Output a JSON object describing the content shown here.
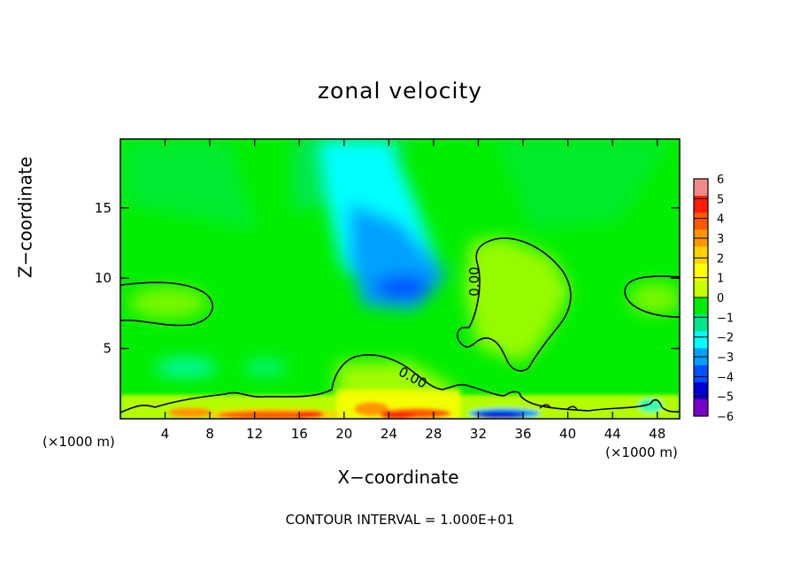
{
  "chart_data": {
    "type": "heatmap",
    "title": "zonal velocity",
    "xlabel": "X−coordinate",
    "ylabel": "Z−coordinate",
    "x_unit_note": "(×1000 m)",
    "y_unit_note": "(×1000 m)",
    "footer": "CONTOUR INTERVAL = 1.000E+01",
    "xlim": [
      0,
      50
    ],
    "ylim": [
      0,
      19.9
    ],
    "x_ticks": [
      4,
      8,
      12,
      16,
      20,
      24,
      28,
      32,
      36,
      40,
      44,
      48
    ],
    "y_ticks": [
      5,
      10,
      15
    ],
    "colorbar": {
      "range": [
        -6,
        6
      ],
      "ticks": [
        6,
        5,
        4,
        3,
        2,
        1,
        0,
        -1,
        -2,
        -3,
        -4,
        -5,
        -6
      ],
      "tick_labels": [
        "6",
        "5",
        "4",
        "3",
        "2",
        "1",
        "0",
        "−1",
        "−2",
        "−3",
        "−4",
        "−5",
        "−6"
      ],
      "colors": [
        "#f08a8a",
        "#ff1e00",
        "#ff5a00",
        "#ff9600",
        "#ffd200",
        "#ffff00",
        "#c8ff00",
        "#00ee00",
        "#00e68c",
        "#00ffff",
        "#00a0ff",
        "#0050ff",
        "#0000d2",
        "#7800c8"
      ]
    },
    "contour_labels": [
      "0.00",
      "0.00"
    ],
    "field_features": [
      {
        "feature": "negative core",
        "x": 26,
        "z": 9.5,
        "value": -3
      },
      {
        "feature": "negative plume",
        "x": 22,
        "z": 15,
        "value": -2
      },
      {
        "feature": "positive region",
        "x": 34,
        "z": 9.5,
        "value": 1
      },
      {
        "feature": "positive region",
        "x": 5,
        "z": 8.5,
        "value": 0.7
      },
      {
        "feature": "positive region",
        "x": 48,
        "z": 8.5,
        "value": 0.6
      },
      {
        "feature": "near-surface positive bands",
        "x": 10,
        "z": 0.3,
        "value": 5
      },
      {
        "feature": "near-surface negative band",
        "x": 34,
        "z": 0.3,
        "value": -5
      }
    ]
  }
}
